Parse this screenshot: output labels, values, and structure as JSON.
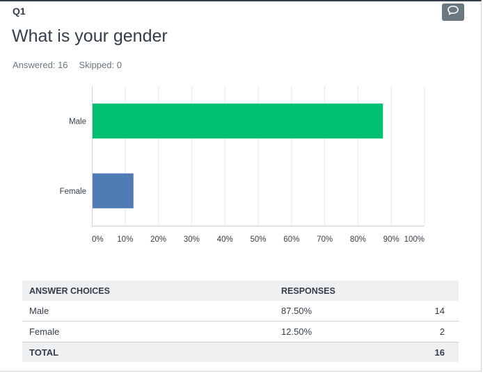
{
  "question": {
    "number": "Q1",
    "title": "What is your gender",
    "answered_label": "Answered: 16",
    "skipped_label": "Skipped: 0"
  },
  "icons": {
    "comment": "comment-bubble-icon"
  },
  "colors": {
    "male_bar": "#00bf6f",
    "female_bar": "#507cb6",
    "comment_button": "#6b787f"
  },
  "chart_data": {
    "type": "bar",
    "orientation": "horizontal",
    "categories": [
      "Male",
      "Female"
    ],
    "values": [
      87.5,
      12.5
    ],
    "colors": [
      "#00bf6f",
      "#507cb6"
    ],
    "xlim": [
      0,
      100
    ],
    "x_ticks": [
      "0%",
      "10%",
      "20%",
      "30%",
      "40%",
      "50%",
      "60%",
      "70%",
      "80%",
      "90%",
      "100%"
    ],
    "grid": true,
    "title": "",
    "xlabel": "",
    "ylabel": ""
  },
  "table": {
    "headers": [
      "ANSWER CHOICES",
      "RESPONSES",
      ""
    ],
    "rows": [
      {
        "choice": "Male",
        "percent": "87.50%",
        "count": "14"
      },
      {
        "choice": "Female",
        "percent": "12.50%",
        "count": "2"
      }
    ],
    "total": {
      "label": "TOTAL",
      "count": "16"
    }
  }
}
